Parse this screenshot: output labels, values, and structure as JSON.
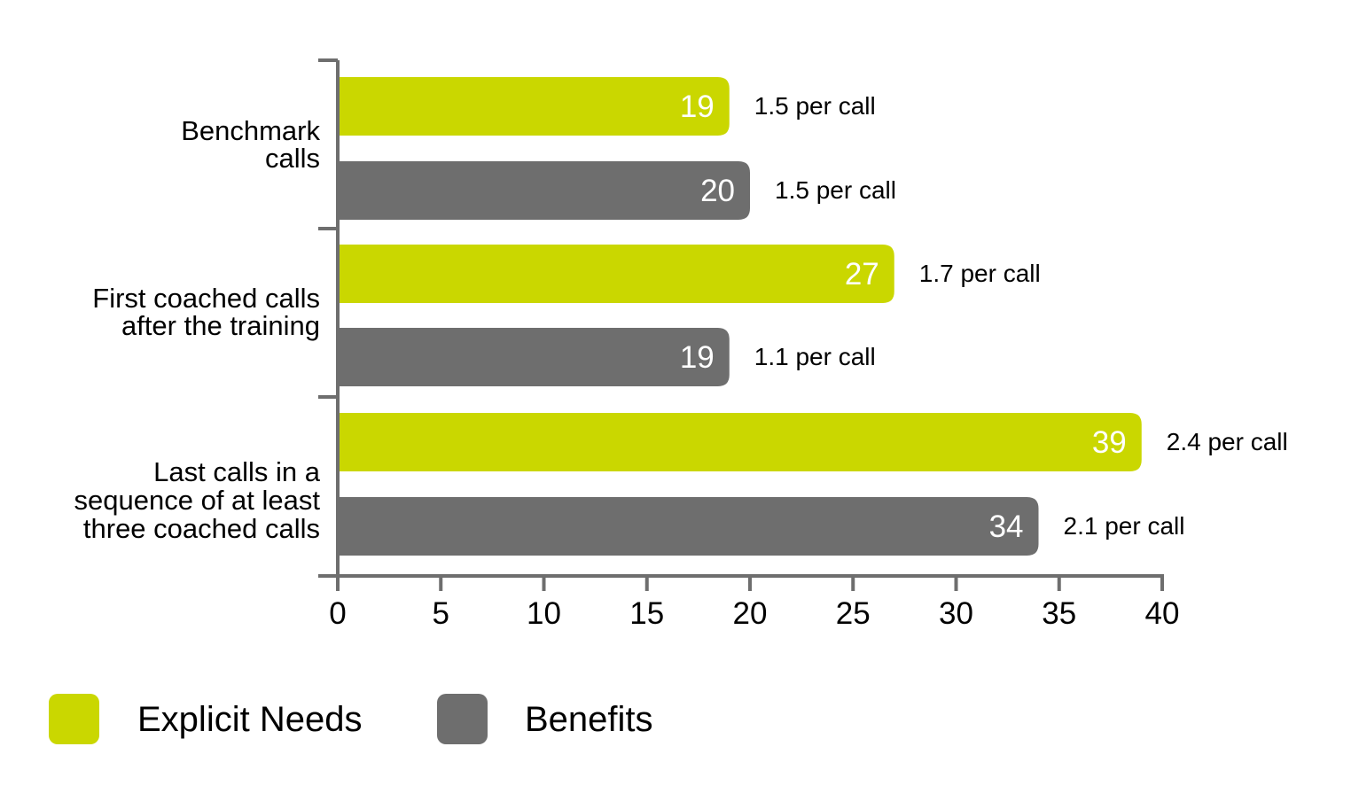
{
  "chart_data": {
    "type": "bar",
    "orientation": "horizontal",
    "categories": [
      [
        "Benchmark",
        "calls"
      ],
      [
        "First coached calls",
        "after the training"
      ],
      [
        "Last calls in a",
        "sequence of at least",
        "three coached calls"
      ]
    ],
    "series": [
      {
        "name": "Explicit Needs",
        "color": "#cad700",
        "values": [
          19,
          27,
          39
        ],
        "annotations": [
          "1.5 per call",
          "1.7 per call",
          "2.4 per call"
        ]
      },
      {
        "name": "Benefits",
        "color": "#6e6e6e",
        "values": [
          20,
          19,
          34
        ],
        "annotations": [
          "1.5 per call",
          "1.1 per call",
          "2.1 per call"
        ]
      }
    ],
    "xlim": [
      0,
      40
    ],
    "xticks": [
      "0",
      "5",
      "10",
      "15",
      "20",
      "25",
      "30",
      "35",
      "40"
    ],
    "axis_color": "#6e6e6e",
    "grid": false,
    "legend_position": "bottom-left"
  }
}
